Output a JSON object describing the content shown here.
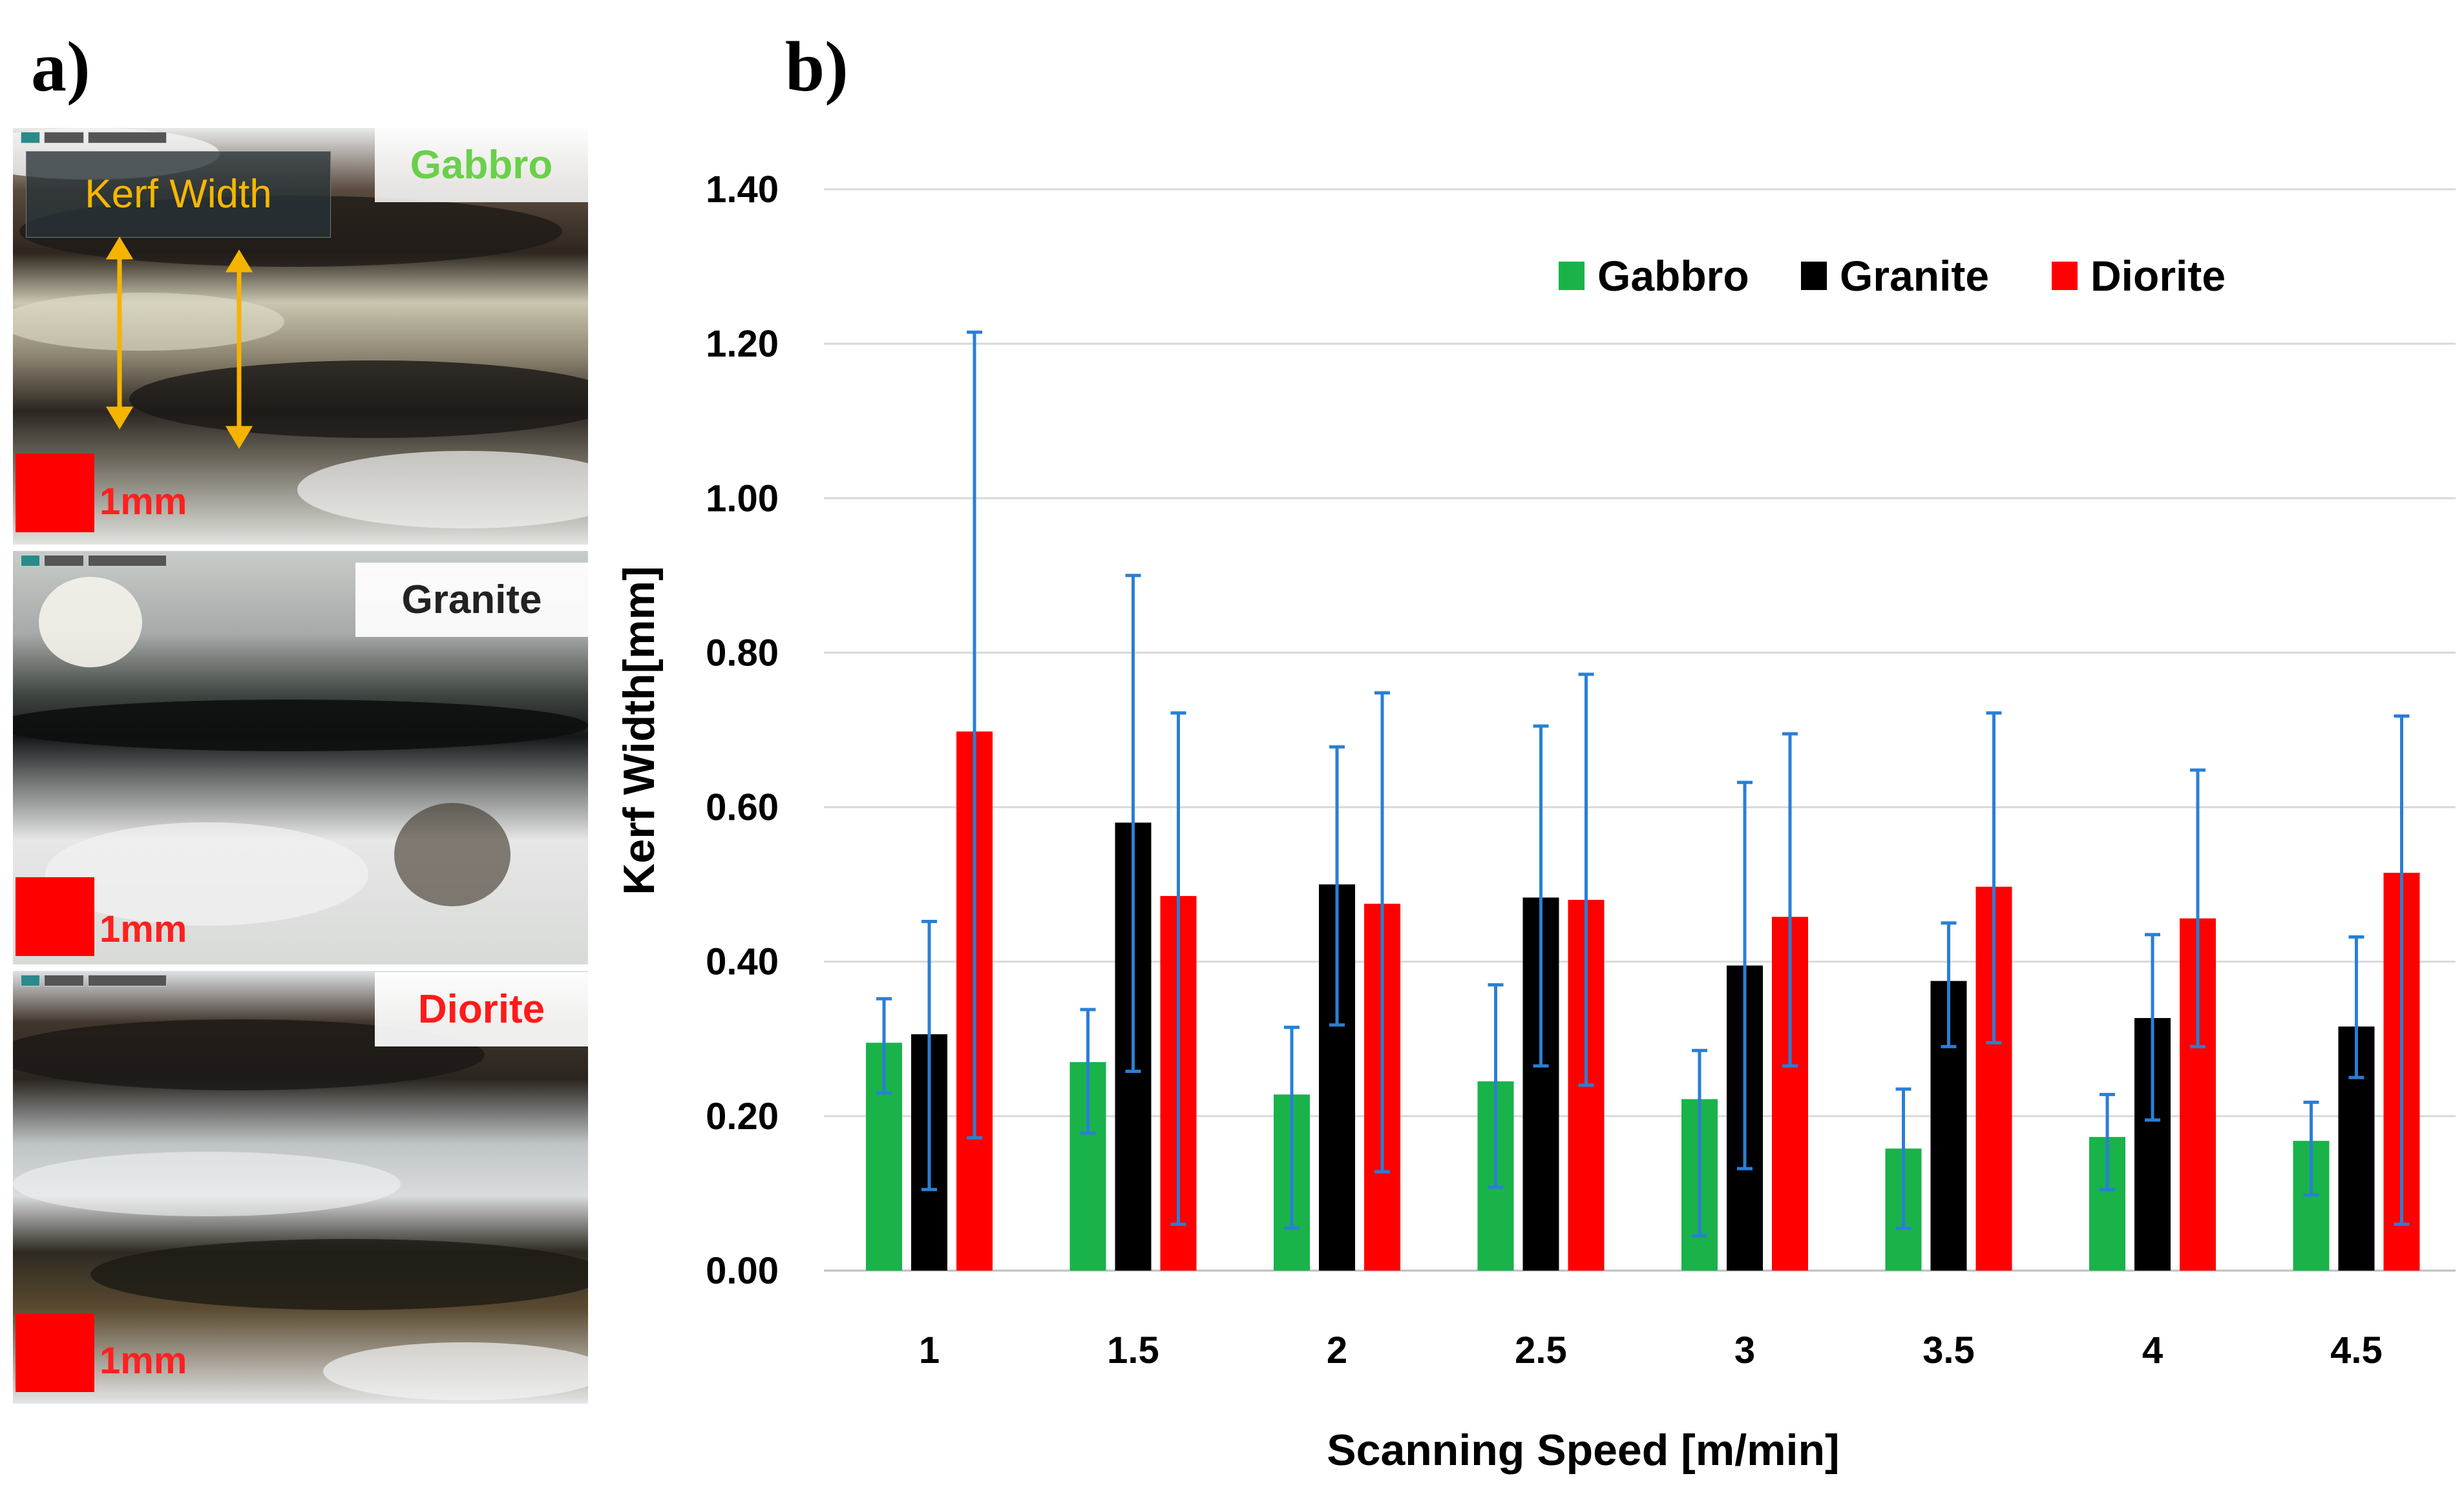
{
  "panel_a": {
    "label": "a)",
    "images": [
      {
        "rock": "Gabbro",
        "rock_color": "#6ad04a",
        "scale": "1mm",
        "annotation": "Kerf Width"
      },
      {
        "rock": "Granite",
        "rock_color": "#222222",
        "scale": "1mm"
      },
      {
        "rock": "Diorite",
        "rock_color": "#ff1a1a",
        "scale": "1mm"
      }
    ]
  },
  "panel_b": {
    "label": "b)"
  },
  "chart_data": {
    "type": "bar",
    "title": "",
    "xlabel": "Scanning Speed [m/min]",
    "ylabel": "Kerf Width[mm]",
    "ylim": [
      0,
      1.4
    ],
    "yticks": [
      "0.00",
      "0.20",
      "0.40",
      "0.60",
      "0.80",
      "1.00",
      "1.20",
      "1.40"
    ],
    "categories": [
      "1",
      "1.5",
      "2",
      "2.5",
      "3",
      "3.5",
      "4",
      "4.5"
    ],
    "grid": true,
    "legend_position": "top-right",
    "series": [
      {
        "name": "Gabbro",
        "color": "#19b34a",
        "values": [
          0.295,
          0.27,
          0.228,
          0.245,
          0.222,
          0.158,
          0.173,
          0.168
        ],
        "error_low": [
          0.23,
          0.178,
          0.055,
          0.108,
          0.045,
          0.055,
          0.105,
          0.098
        ],
        "error_high": [
          0.352,
          0.338,
          0.315,
          0.37,
          0.285,
          0.235,
          0.228,
          0.218
        ]
      },
      {
        "name": "Granite",
        "color": "#000000",
        "values": [
          0.306,
          0.58,
          0.5,
          0.483,
          0.395,
          0.375,
          0.327,
          0.316
        ],
        "error_low": [
          0.105,
          0.258,
          0.318,
          0.265,
          0.132,
          0.29,
          0.195,
          0.25
        ],
        "error_high": [
          0.452,
          0.9,
          0.678,
          0.705,
          0.632,
          0.45,
          0.435,
          0.432
        ]
      },
      {
        "name": "Diorite",
        "color": "#ff0000",
        "values": [
          0.698,
          0.485,
          0.475,
          0.48,
          0.458,
          0.497,
          0.456,
          0.515
        ],
        "error_low": [
          0.172,
          0.06,
          0.128,
          0.24,
          0.265,
          0.295,
          0.29,
          0.06
        ],
        "error_high": [
          1.215,
          0.722,
          0.748,
          0.772,
          0.695,
          0.722,
          0.648,
          0.718
        ]
      }
    ],
    "error_bar_color": "#2a7fd4"
  }
}
